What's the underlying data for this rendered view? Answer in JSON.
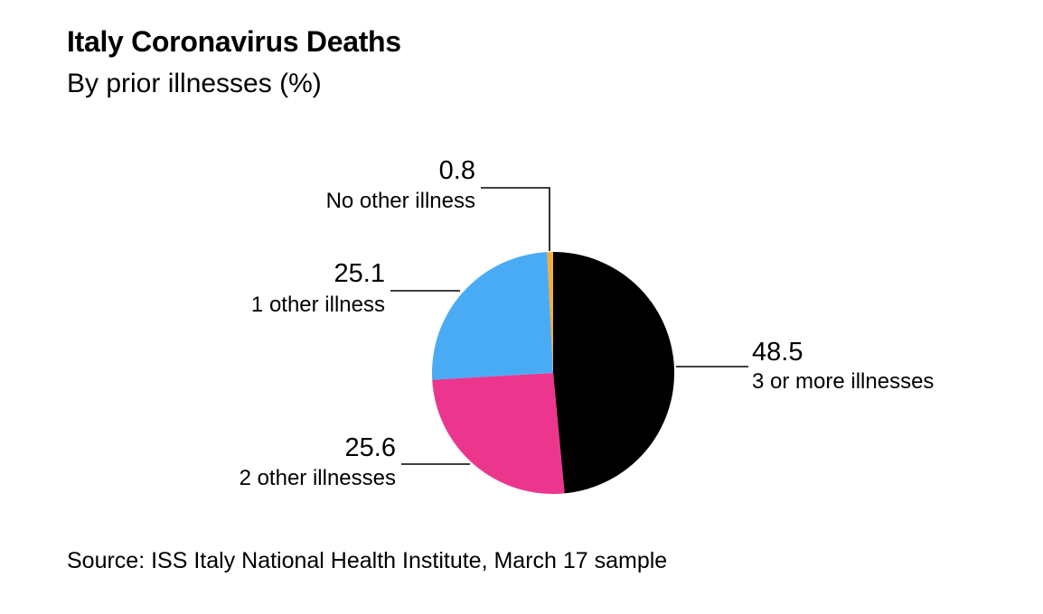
{
  "chart_data": {
    "type": "pie",
    "title": "Italy Coronavirus Deaths",
    "subtitle": "By prior illnesses (%)",
    "source": "Source: ISS Italy National Health Institute, March 17 sample",
    "categories": [
      "3 or more illnesses",
      "2 other illnesses",
      "1 other illness",
      "No other illness"
    ],
    "values": [
      48.5,
      25.6,
      25.1,
      0.8
    ],
    "value_labels": [
      "48.5",
      "25.6",
      "25.1",
      "0.8"
    ],
    "colors": [
      "#000000",
      "#ec368d",
      "#4aabf5",
      "#f2ad3c"
    ],
    "start": "12 o'clock",
    "direction": "clockwise"
  }
}
